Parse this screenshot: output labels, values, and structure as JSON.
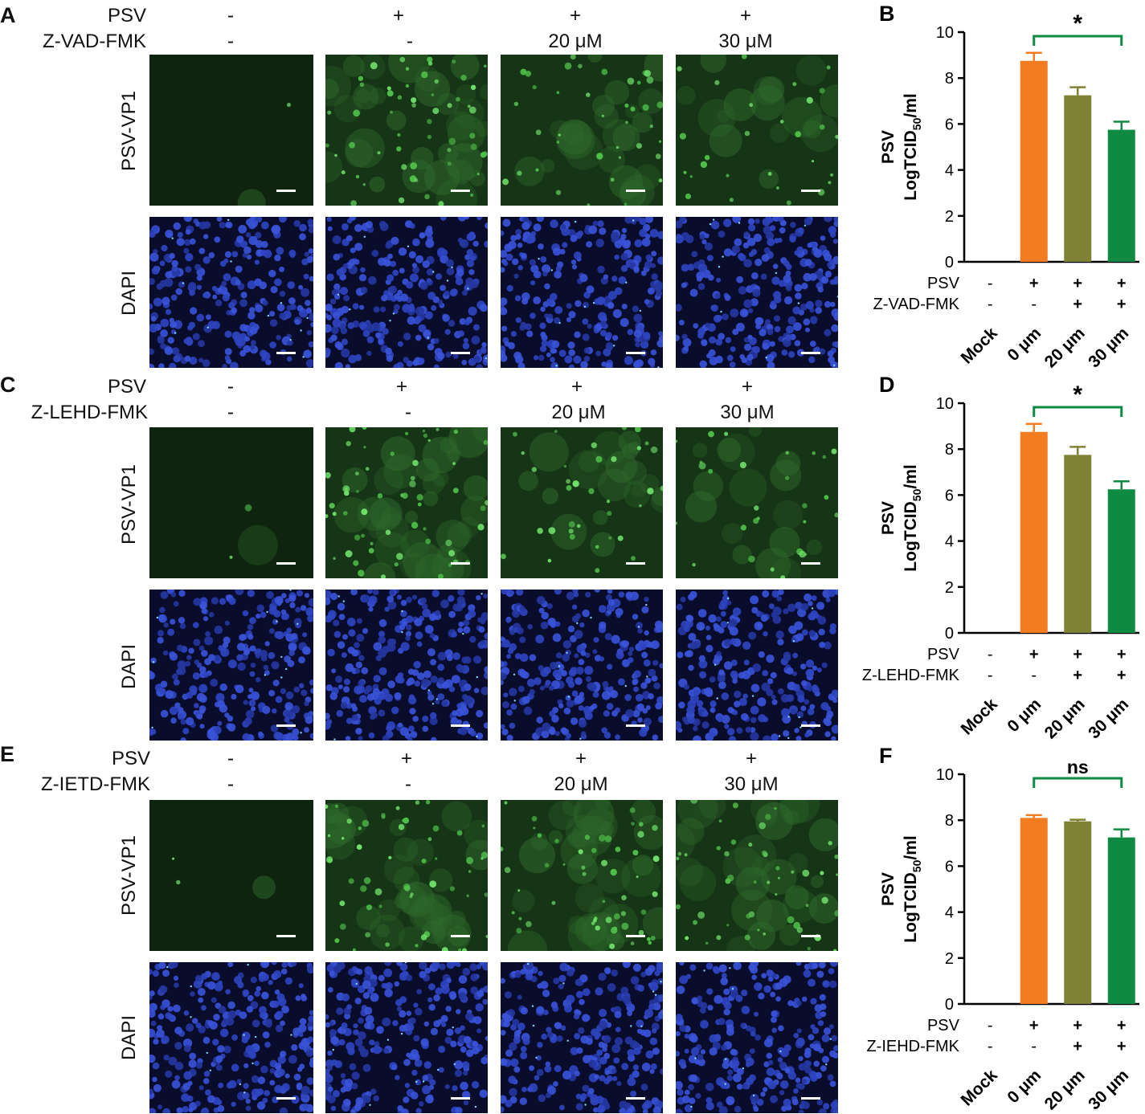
{
  "figure": {
    "blocks": [
      {
        "letter": "A",
        "row1_label": "PSV",
        "row2_label": "Z-VAD-FMK",
        "columns": [
          {
            "psv": "-",
            "drug": "-"
          },
          {
            "psv": "+",
            "drug": "-"
          },
          {
            "psv": "+",
            "drug": "20 μM"
          },
          {
            "psv": "+",
            "drug": "30 μM"
          }
        ],
        "stain_rows": [
          "PSV-VP1",
          "DAPI"
        ],
        "green_levels": [
          0.02,
          0.8,
          0.55,
          0.4
        ]
      },
      {
        "letter": "C",
        "row1_label": "PSV",
        "row2_label": "Z-LEHD-FMK",
        "columns": [
          {
            "psv": "-",
            "drug": "-"
          },
          {
            "psv": "+",
            "drug": "-"
          },
          {
            "psv": "+",
            "drug": "20 μM"
          },
          {
            "psv": "+",
            "drug": "30 μM"
          }
        ],
        "stain_rows": [
          "PSV-VP1",
          "DAPI"
        ],
        "green_levels": [
          0.03,
          0.85,
          0.5,
          0.4
        ]
      },
      {
        "letter": "E",
        "row1_label": "PSV",
        "row2_label": "Z-IETD-FMK",
        "columns": [
          {
            "psv": "-",
            "drug": "-"
          },
          {
            "psv": "+",
            "drug": "-"
          },
          {
            "psv": "+",
            "drug": "20 μM"
          },
          {
            "psv": "+",
            "drug": "30 μM"
          }
        ],
        "stain_rows": [
          "PSV-VP1",
          "DAPI"
        ],
        "green_levels": [
          0.03,
          0.8,
          0.75,
          0.7
        ]
      }
    ]
  },
  "chart_data": [
    {
      "letter": "B",
      "type": "bar",
      "ylabel_line1": "PSV",
      "ylabel_line2": "LogTCID",
      "ylabel_sub": "50",
      "ylabel_suffix": "/ml",
      "ylim": [
        0,
        10
      ],
      "yticks": [
        "0",
        "2",
        "4",
        "6",
        "8",
        "10"
      ],
      "categories": [
        "Mock",
        "0 μm",
        "20 μm",
        "30 μm"
      ],
      "values": [
        0,
        8.75,
        7.25,
        5.75
      ],
      "errors": [
        0,
        0.35,
        0.35,
        0.35
      ],
      "colors": [
        "#f47c20",
        "#7f8134",
        "#0f8a43",
        "#0f8a43"
      ],
      "cond_rows": [
        {
          "label": "PSV",
          "marks": [
            "-",
            "+",
            "+",
            "+"
          ]
        },
        {
          "label": "Z-VAD-FMK",
          "marks": [
            "-",
            "-",
            "+",
            "+"
          ]
        }
      ],
      "significance": {
        "from": 1,
        "to": 3,
        "label": "*"
      }
    },
    {
      "letter": "D",
      "type": "bar",
      "ylabel_line1": "PSV",
      "ylabel_line2": "LogTCID",
      "ylabel_sub": "50",
      "ylabel_suffix": "/ml",
      "ylim": [
        0,
        10
      ],
      "yticks": [
        "0",
        "2",
        "4",
        "6",
        "8",
        "10"
      ],
      "categories": [
        "Mock",
        "0 μm",
        "20 μm",
        "30 μm"
      ],
      "values": [
        0,
        8.75,
        7.75,
        6.25
      ],
      "errors": [
        0,
        0.35,
        0.35,
        0.35
      ],
      "colors": [
        "#f47c20",
        "#7f8134",
        "#0f8a43",
        "#0f8a43"
      ],
      "cond_rows": [
        {
          "label": "PSV",
          "marks": [
            "-",
            "+",
            "+",
            "+"
          ]
        },
        {
          "label": "Z-LEHD-FMK",
          "marks": [
            "-",
            "-",
            "+",
            "+"
          ]
        }
      ],
      "significance": {
        "from": 1,
        "to": 3,
        "label": "*"
      }
    },
    {
      "letter": "F",
      "type": "bar",
      "ylabel_line1": "PSV",
      "ylabel_line2": "LogTCID",
      "ylabel_sub": "50",
      "ylabel_suffix": "/ml",
      "ylim": [
        0,
        10
      ],
      "yticks": [
        "0",
        "2",
        "4",
        "6",
        "8",
        "10"
      ],
      "categories": [
        "Mock",
        "0 μm",
        "20 μm",
        "30 μm"
      ],
      "values": [
        0,
        8.1,
        7.95,
        7.25
      ],
      "errors": [
        0,
        0.12,
        0.07,
        0.35
      ],
      "colors": [
        "#f47c20",
        "#7f8134",
        "#0f8a43",
        "#0f8a43"
      ],
      "cond_rows": [
        {
          "label": "PSV",
          "marks": [
            "-",
            "+",
            "+",
            "+"
          ]
        },
        {
          "label": "Z-IEHD-FMK",
          "marks": [
            "-",
            "-",
            "+",
            "+"
          ]
        }
      ],
      "significance": {
        "from": 1,
        "to": 3,
        "label": "ns"
      }
    }
  ]
}
